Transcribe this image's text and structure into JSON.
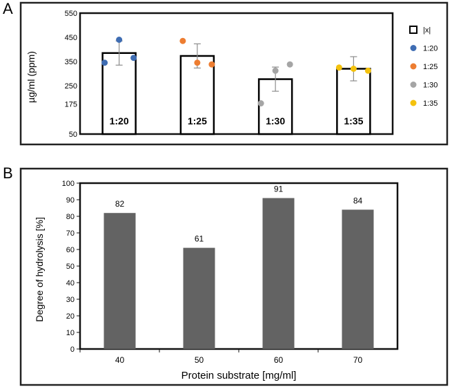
{
  "panels": {
    "a": "A",
    "b": "B"
  },
  "colors": {
    "blue": "#3f6db3",
    "orange": "#ed7d31",
    "gray": "#a5a5a5",
    "gold": "#f4c20d",
    "barB": "#636363",
    "error": "#8c8c8c"
  },
  "chart_data": [
    {
      "type": "bar",
      "title": "",
      "ylabel": "µg/ml (ppm)",
      "xlabel": "",
      "ylim": [
        50,
        550
      ],
      "yticks": [
        50,
        175,
        250,
        350,
        450,
        550
      ],
      "categories": [
        "1:20",
        "1:25",
        "1:30",
        "1:35"
      ],
      "means": [
        385,
        373,
        277,
        320
      ],
      "errors": [
        50,
        50,
        50,
        50
      ],
      "points": [
        [
          345,
          440,
          365
        ],
        [
          435,
          345,
          338
        ],
        [
          177,
          312,
          338
        ],
        [
          325,
          320,
          312
        ]
      ],
      "point_colors": [
        "blue",
        "orange",
        "gray",
        "gold"
      ],
      "legend_position": "right",
      "legend": [
        "|x|",
        "1:20",
        "1:25",
        "1:30",
        "1:35"
      ]
    },
    {
      "type": "bar",
      "title": "",
      "ylabel": "Degree of hydrolysis [%]",
      "xlabel": "Protein substrate [mg/ml]",
      "ylim": [
        0,
        100
      ],
      "yticks": [
        0,
        10,
        20,
        30,
        40,
        50,
        60,
        70,
        80,
        90,
        100
      ],
      "categories": [
        "40",
        "50",
        "60",
        "70"
      ],
      "values": [
        82,
        61,
        91,
        84
      ],
      "data_labels": [
        "82",
        "61",
        "91",
        "84"
      ]
    }
  ]
}
